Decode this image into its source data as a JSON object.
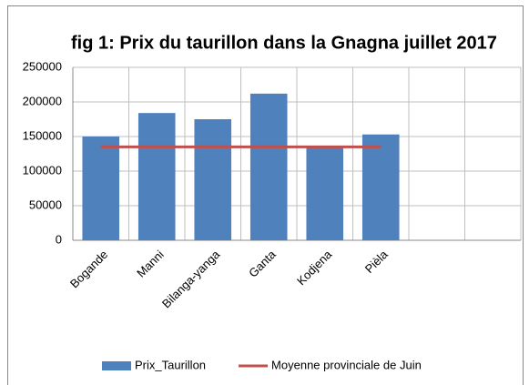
{
  "chart_data": {
    "type": "bar+line",
    "title": "fig 1: Prix du taurillon dans la Gnagna juillet 2017",
    "categories": [
      "Bogande",
      "Manni",
      "Bilanga-yanga",
      "Ganta",
      "Kodjena",
      "Pièla",
      null,
      null
    ],
    "series": [
      {
        "name": "Prix_Taurillon",
        "type": "bar",
        "color": "#4f81bd",
        "values": [
          150000,
          184000,
          175000,
          212000,
          135000,
          153000,
          null,
          null
        ]
      },
      {
        "name": "Moyenne provinciale de Juin",
        "type": "line",
        "color": "#c0504d",
        "values": [
          135000,
          135000,
          135000,
          135000,
          135000,
          135000,
          null,
          null
        ]
      }
    ],
    "ylim": [
      0,
      250000
    ],
    "yticks": [
      0,
      50000,
      100000,
      150000,
      200000,
      250000
    ],
    "grid": true,
    "legend": "bottom"
  }
}
